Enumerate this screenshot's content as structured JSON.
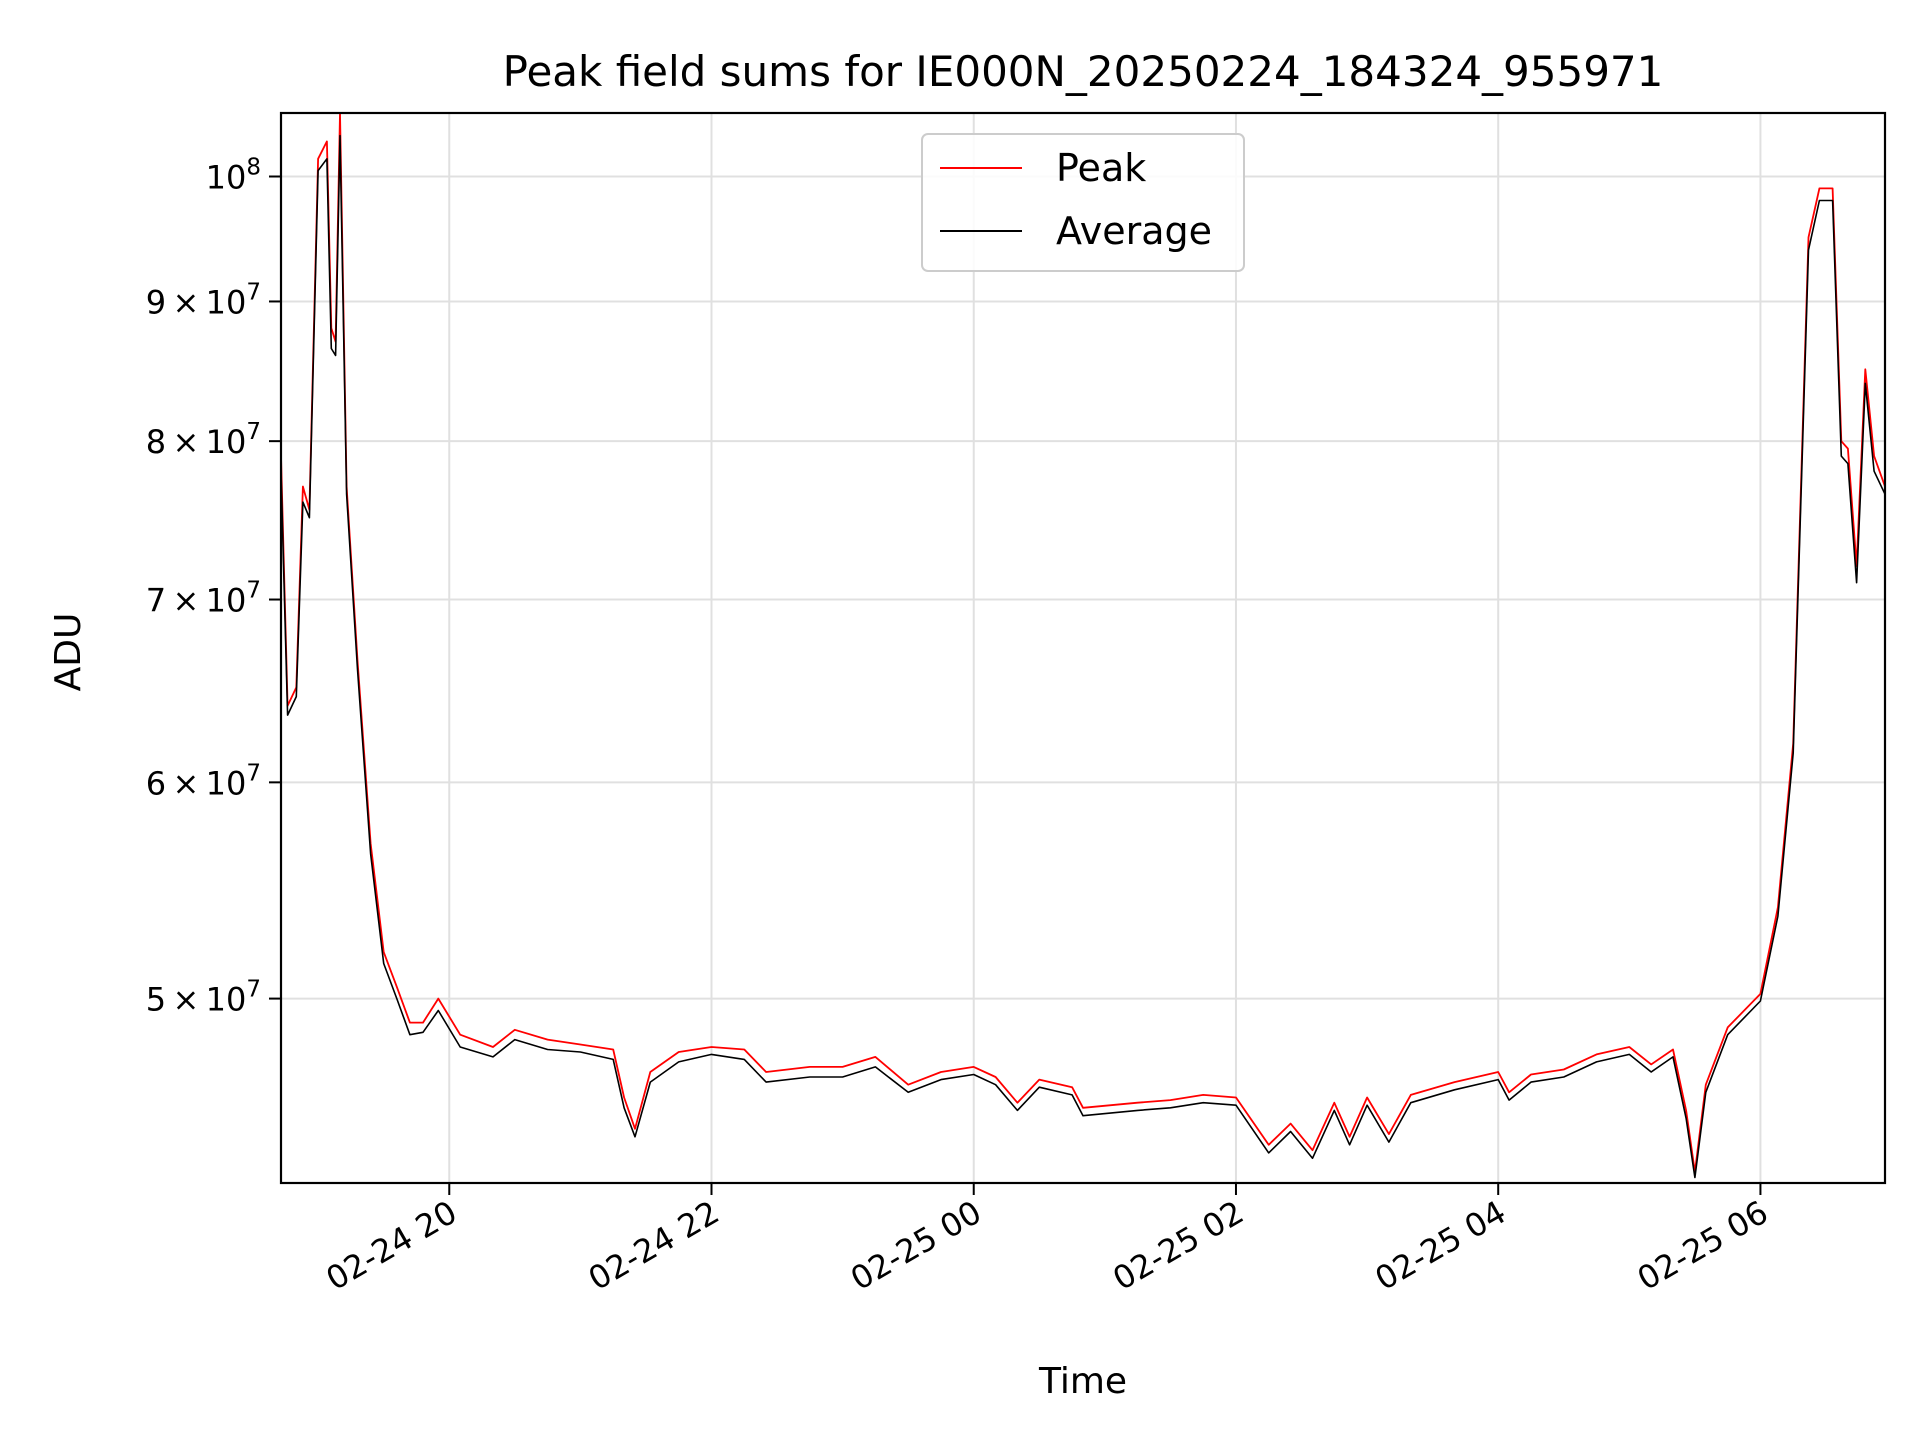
{
  "chart_data": {
    "type": "line",
    "title": "Peak field sums for IE000N_20250224_184324_955971",
    "xlabel": "Time",
    "ylabel": "ADU",
    "yscale": "log",
    "ylim": [
      42800000,
      105500000
    ],
    "xlim": [
      "2025-02-24 18:43",
      "2025-02-25 06:57"
    ],
    "grid": true,
    "legend": {
      "location": "top-center",
      "entries": [
        "Peak",
        "Average"
      ]
    },
    "x_ticks": [
      {
        "label": "02-24 20",
        "value": "2025-02-24 20:00"
      },
      {
        "label": "02-24 22",
        "value": "2025-02-24 22:00"
      },
      {
        "label": "02-25 00",
        "value": "2025-02-25 00:00"
      },
      {
        "label": "02-25 02",
        "value": "2025-02-25 02:00"
      },
      {
        "label": "02-25 04",
        "value": "2025-02-25 04:00"
      },
      {
        "label": "02-25 06",
        "value": "2025-02-25 06:00"
      }
    ],
    "y_ticks": [
      {
        "value": 50000000,
        "mantissa": "5",
        "exponent": "7"
      },
      {
        "value": 60000000,
        "mantissa": "6",
        "exponent": "7"
      },
      {
        "value": 70000000,
        "mantissa": "7",
        "exponent": "7"
      },
      {
        "value": 80000000,
        "mantissa": "8",
        "exponent": "7"
      },
      {
        "value": 90000000,
        "mantissa": "9",
        "exponent": "7"
      },
      {
        "value": 100000000,
        "mantissa": "",
        "exponent": "8"
      }
    ],
    "series": [
      {
        "name": "Peak",
        "color": "#ff0000",
        "points": [
          [
            "2025-02-24 18:43",
            79000000
          ],
          [
            "2025-02-24 18:46",
            64000000
          ],
          [
            "2025-02-24 18:50",
            65000000
          ],
          [
            "2025-02-24 18:53",
            77000000
          ],
          [
            "2025-02-24 18:56",
            75500000
          ],
          [
            "2025-02-24 19:00",
            101500000
          ],
          [
            "2025-02-24 19:04",
            103000000
          ],
          [
            "2025-02-24 19:06",
            88000000
          ],
          [
            "2025-02-24 19:08",
            87000000
          ],
          [
            "2025-02-24 19:10",
            105500000
          ],
          [
            "2025-02-24 19:13",
            77000000
          ],
          [
            "2025-02-24 19:18",
            66500000
          ],
          [
            "2025-02-24 19:24",
            57000000
          ],
          [
            "2025-02-24 19:30",
            52000000
          ],
          [
            "2025-02-24 19:36",
            50500000
          ],
          [
            "2025-02-24 19:42",
            49000000
          ],
          [
            "2025-02-24 19:48",
            49000000
          ],
          [
            "2025-02-24 19:55",
            50000000
          ],
          [
            "2025-02-24 20:05",
            48500000
          ],
          [
            "2025-02-24 20:20",
            48000000
          ],
          [
            "2025-02-24 20:30",
            48700000
          ],
          [
            "2025-02-24 20:45",
            48300000
          ],
          [
            "2025-02-24 21:00",
            48100000
          ],
          [
            "2025-02-24 21:15",
            47900000
          ],
          [
            "2025-02-24 21:20",
            46000000
          ],
          [
            "2025-02-24 21:25",
            44800000
          ],
          [
            "2025-02-24 21:32",
            47000000
          ],
          [
            "2025-02-24 21:45",
            47800000
          ],
          [
            "2025-02-24 22:00",
            48000000
          ],
          [
            "2025-02-24 22:15",
            47900000
          ],
          [
            "2025-02-24 22:25",
            47000000
          ],
          [
            "2025-02-24 22:45",
            47200000
          ],
          [
            "2025-02-24 23:00",
            47200000
          ],
          [
            "2025-02-24 23:15",
            47600000
          ],
          [
            "2025-02-24 23:30",
            46500000
          ],
          [
            "2025-02-24 23:45",
            47000000
          ],
          [
            "2025-02-25 00:00",
            47200000
          ],
          [
            "2025-02-25 00:10",
            46800000
          ],
          [
            "2025-02-25 00:20",
            45800000
          ],
          [
            "2025-02-25 00:30",
            46700000
          ],
          [
            "2025-02-25 00:45",
            46400000
          ],
          [
            "2025-02-25 00:50",
            45600000
          ],
          [
            "2025-02-25 01:15",
            45800000
          ],
          [
            "2025-02-25 01:30",
            45900000
          ],
          [
            "2025-02-25 01:45",
            46100000
          ],
          [
            "2025-02-25 02:00",
            46000000
          ],
          [
            "2025-02-25 02:15",
            44200000
          ],
          [
            "2025-02-25 02:25",
            45000000
          ],
          [
            "2025-02-25 02:35",
            44000000
          ],
          [
            "2025-02-25 02:45",
            45800000
          ],
          [
            "2025-02-25 02:52",
            44500000
          ],
          [
            "2025-02-25 03:00",
            46000000
          ],
          [
            "2025-02-25 03:10",
            44600000
          ],
          [
            "2025-02-25 03:20",
            46100000
          ],
          [
            "2025-02-25 03:40",
            46600000
          ],
          [
            "2025-02-25 04:00",
            47000000
          ],
          [
            "2025-02-25 04:05",
            46200000
          ],
          [
            "2025-02-25 04:15",
            46900000
          ],
          [
            "2025-02-25 04:30",
            47100000
          ],
          [
            "2025-02-25 04:45",
            47700000
          ],
          [
            "2025-02-25 05:00",
            48000000
          ],
          [
            "2025-02-25 05:10",
            47300000
          ],
          [
            "2025-02-25 05:20",
            47900000
          ],
          [
            "2025-02-25 05:26",
            45500000
          ],
          [
            "2025-02-25 05:30",
            43200000
          ],
          [
            "2025-02-25 05:35",
            46500000
          ],
          [
            "2025-02-25 05:45",
            48800000
          ],
          [
            "2025-02-25 06:00",
            50200000
          ],
          [
            "2025-02-25 06:08",
            54000000
          ],
          [
            "2025-02-25 06:15",
            62000000
          ],
          [
            "2025-02-25 06:22",
            95000000
          ],
          [
            "2025-02-25 06:27",
            99000000
          ],
          [
            "2025-02-25 06:33",
            99000000
          ],
          [
            "2025-02-25 06:37",
            80000000
          ],
          [
            "2025-02-25 06:40",
            79500000
          ],
          [
            "2025-02-25 06:44",
            72000000
          ],
          [
            "2025-02-25 06:48",
            85000000
          ],
          [
            "2025-02-25 06:52",
            79000000
          ],
          [
            "2025-02-25 06:57",
            77000000
          ]
        ]
      },
      {
        "name": "Average",
        "color": "#000000",
        "points": [
          [
            "2025-02-24 18:43",
            78000000
          ],
          [
            "2025-02-24 18:46",
            63500000
          ],
          [
            "2025-02-24 18:50",
            64500000
          ],
          [
            "2025-02-24 18:53",
            76000000
          ],
          [
            "2025-02-24 18:56",
            75000000
          ],
          [
            "2025-02-24 19:00",
            100500000
          ],
          [
            "2025-02-24 19:04",
            101500000
          ],
          [
            "2025-02-24 19:06",
            86500000
          ],
          [
            "2025-02-24 19:08",
            86000000
          ],
          [
            "2025-02-24 19:10",
            103500000
          ],
          [
            "2025-02-24 19:13",
            76500000
          ],
          [
            "2025-02-24 19:18",
            66000000
          ],
          [
            "2025-02-24 19:24",
            56500000
          ],
          [
            "2025-02-24 19:30",
            51500000
          ],
          [
            "2025-02-24 19:36",
            50000000
          ],
          [
            "2025-02-24 19:42",
            48500000
          ],
          [
            "2025-02-24 19:48",
            48600000
          ],
          [
            "2025-02-24 19:55",
            49500000
          ],
          [
            "2025-02-24 20:05",
            48000000
          ],
          [
            "2025-02-24 20:20",
            47600000
          ],
          [
            "2025-02-24 20:30",
            48300000
          ],
          [
            "2025-02-24 20:45",
            47900000
          ],
          [
            "2025-02-24 21:00",
            47800000
          ],
          [
            "2025-02-24 21:15",
            47500000
          ],
          [
            "2025-02-24 21:20",
            45600000
          ],
          [
            "2025-02-24 21:25",
            44500000
          ],
          [
            "2025-02-24 21:32",
            46600000
          ],
          [
            "2025-02-24 21:45",
            47400000
          ],
          [
            "2025-02-24 22:00",
            47700000
          ],
          [
            "2025-02-24 22:15",
            47500000
          ],
          [
            "2025-02-24 22:25",
            46600000
          ],
          [
            "2025-02-24 22:45",
            46800000
          ],
          [
            "2025-02-24 23:00",
            46800000
          ],
          [
            "2025-02-24 23:15",
            47200000
          ],
          [
            "2025-02-24 23:30",
            46200000
          ],
          [
            "2025-02-24 23:45",
            46700000
          ],
          [
            "2025-02-25 00:00",
            46900000
          ],
          [
            "2025-02-25 00:10",
            46500000
          ],
          [
            "2025-02-25 00:20",
            45500000
          ],
          [
            "2025-02-25 00:30",
            46400000
          ],
          [
            "2025-02-25 00:45",
            46100000
          ],
          [
            "2025-02-25 00:50",
            45300000
          ],
          [
            "2025-02-25 01:15",
            45500000
          ],
          [
            "2025-02-25 01:30",
            45600000
          ],
          [
            "2025-02-25 01:45",
            45800000
          ],
          [
            "2025-02-25 02:00",
            45700000
          ],
          [
            "2025-02-25 02:15",
            43900000
          ],
          [
            "2025-02-25 02:25",
            44700000
          ],
          [
            "2025-02-25 02:35",
            43700000
          ],
          [
            "2025-02-25 02:45",
            45500000
          ],
          [
            "2025-02-25 02:52",
            44200000
          ],
          [
            "2025-02-25 03:00",
            45700000
          ],
          [
            "2025-02-25 03:10",
            44300000
          ],
          [
            "2025-02-25 03:20",
            45800000
          ],
          [
            "2025-02-25 03:40",
            46300000
          ],
          [
            "2025-02-25 04:00",
            46700000
          ],
          [
            "2025-02-25 04:05",
            45900000
          ],
          [
            "2025-02-25 04:15",
            46600000
          ],
          [
            "2025-02-25 04:30",
            46800000
          ],
          [
            "2025-02-25 04:45",
            47400000
          ],
          [
            "2025-02-25 05:00",
            47700000
          ],
          [
            "2025-02-25 05:10",
            47000000
          ],
          [
            "2025-02-25 05:20",
            47600000
          ],
          [
            "2025-02-25 05:26",
            45200000
          ],
          [
            "2025-02-25 05:30",
            43000000
          ],
          [
            "2025-02-25 05:35",
            46200000
          ],
          [
            "2025-02-25 05:45",
            48500000
          ],
          [
            "2025-02-25 06:00",
            49900000
          ],
          [
            "2025-02-25 06:08",
            53600000
          ],
          [
            "2025-02-25 06:15",
            61500000
          ],
          [
            "2025-02-25 06:22",
            94000000
          ],
          [
            "2025-02-25 06:27",
            98000000
          ],
          [
            "2025-02-25 06:33",
            98000000
          ],
          [
            "2025-02-25 06:37",
            79000000
          ],
          [
            "2025-02-25 06:40",
            78500000
          ],
          [
            "2025-02-25 06:44",
            71000000
          ],
          [
            "2025-02-25 06:48",
            84000000
          ],
          [
            "2025-02-25 06:52",
            78000000
          ],
          [
            "2025-02-25 06:57",
            76500000
          ]
        ]
      }
    ]
  }
}
